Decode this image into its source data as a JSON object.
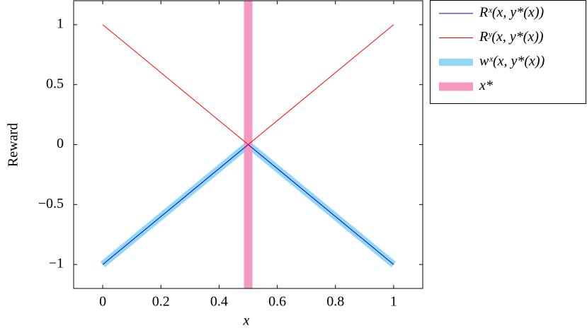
{
  "chart_data": {
    "type": "line",
    "x": [
      0,
      0.5,
      1
    ],
    "series": [
      {
        "name": "wˣ(x, y*(x))",
        "color": "#91d8f6",
        "width": 10,
        "values": [
          -1,
          0,
          -1
        ]
      },
      {
        "name": "x*",
        "color": "#f49ac1",
        "width": 12,
        "vline": 0.5
      },
      {
        "name": "Rˣ(x, y*(x))",
        "color": "#0000cc",
        "width": 1,
        "values": [
          -1,
          0,
          -1
        ]
      },
      {
        "name": "Rʸ(x, y*(x))",
        "color": "#ff0000",
        "width": 1,
        "values": [
          1,
          0,
          1
        ]
      }
    ],
    "legend_order": [
      2,
      3,
      0,
      1
    ],
    "xlabel": "x",
    "ylabel": "Reward",
    "xlim": [
      -0.1,
      1.1
    ],
    "ylim": [
      -1.2,
      1.2
    ],
    "xticks": [
      0,
      0.2,
      0.4,
      0.6,
      0.8,
      1
    ],
    "yticks": [
      {
        "value": -1,
        "label": "−1"
      },
      {
        "value": -0.5,
        "label": "−0.5"
      },
      0,
      0.5,
      1
    ],
    "legend": "outside-upper-right",
    "grid": false
  }
}
